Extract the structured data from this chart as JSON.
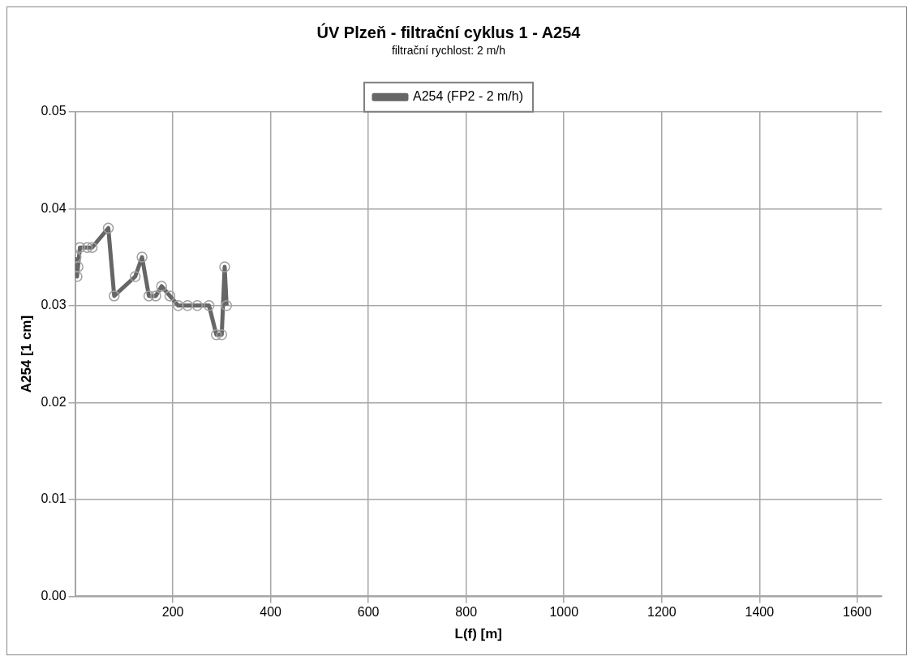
{
  "chart_data": {
    "type": "line",
    "title": "ÚV Plzeň - filtrační cyklus 1 - A254",
    "subtitle": "filtrační rychlost: 2 m/h",
    "xlabel": "L(f) [m]",
    "ylabel": "A254 [1 cm]",
    "legend": "top",
    "grid": true,
    "marker": "circle",
    "line_style": "solid",
    "xlim": [
      0,
      1650
    ],
    "xticks": [
      200,
      400,
      600,
      800,
      1000,
      1200,
      1400,
      1600
    ],
    "ylim": [
      0,
      0.05
    ],
    "yticks": [
      {
        "value": 0,
        "label": "0.00"
      },
      {
        "value": 0.01,
        "label": "0.01"
      },
      {
        "value": 0.02,
        "label": "0.02"
      },
      {
        "value": 0.03,
        "label": "0.03"
      },
      {
        "value": 0.04,
        "label": "0.04"
      },
      {
        "value": 0.05,
        "label": "0.05"
      }
    ],
    "series": [
      {
        "name": "A254 (FP2 - 2 m/h)",
        "color": "#666666",
        "x": [
          2,
          4,
          6,
          10,
          25,
          35,
          68,
          80,
          123,
          137,
          151,
          165,
          177,
          194,
          211,
          230,
          250,
          274,
          289,
          300,
          306,
          310
        ],
        "values": [
          0.035,
          0.033,
          0.034,
          0.036,
          0.036,
          0.036,
          0.038,
          0.031,
          0.033,
          0.035,
          0.031,
          0.031,
          0.032,
          0.031,
          0.03,
          0.03,
          0.03,
          0.03,
          0.027,
          0.027,
          0.034,
          0.03
        ]
      }
    ]
  }
}
